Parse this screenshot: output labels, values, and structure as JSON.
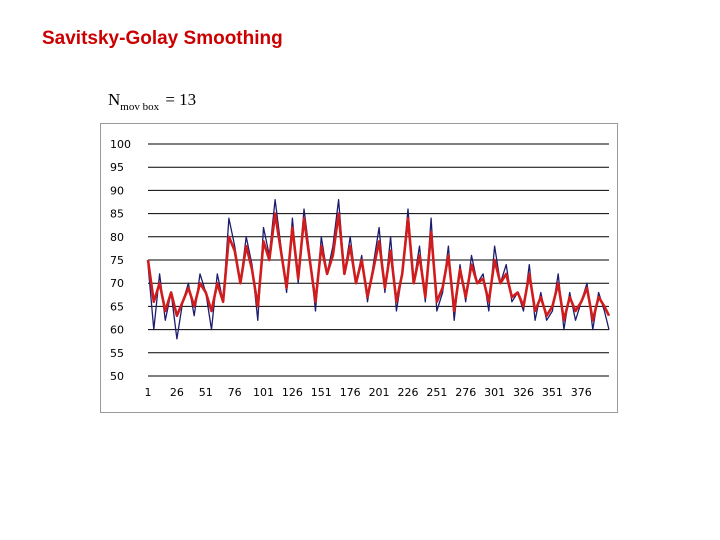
{
  "slide": {
    "title": "Savitsky-Golay Smoothing",
    "param_main": "N",
    "param_sub": "mov box",
    "param_value": "= 13"
  },
  "chart_data": {
    "type": "line",
    "title": "",
    "xlabel": "",
    "ylabel": "",
    "ylim": [
      50,
      100
    ],
    "xlim": [
      1,
      400
    ],
    "grid": true,
    "legend": "none",
    "y_ticks": [
      100,
      95,
      90,
      85,
      80,
      75,
      70,
      65,
      60,
      55,
      50
    ],
    "x_ticks": [
      1,
      26,
      51,
      76,
      101,
      126,
      151,
      176,
      201,
      226,
      251,
      276,
      301,
      326,
      351,
      376
    ],
    "series": [
      {
        "color": "#1c1c6e",
        "x": [
          1,
          6,
          11,
          16,
          21,
          26,
          31,
          36,
          41,
          46,
          51,
          56,
          61,
          66,
          71,
          76,
          81,
          86,
          91,
          96,
          101,
          106,
          111,
          116,
          121,
          126,
          131,
          136,
          141,
          146,
          151,
          156,
          161,
          166,
          171,
          176,
          181,
          186,
          191,
          196,
          201,
          206,
          211,
          216,
          221,
          226,
          231,
          236,
          241,
          246,
          251,
          256,
          261,
          266,
          271,
          276,
          281,
          286,
          291,
          296,
          301,
          306,
          311,
          316,
          321,
          326,
          331,
          336,
          341,
          346,
          351,
          356,
          361,
          366,
          371,
          376,
          381,
          386,
          391,
          396,
          400
        ],
        "values": [
          74,
          60,
          72,
          62,
          68,
          58,
          66,
          70,
          63,
          72,
          68,
          60,
          72,
          66,
          84,
          78,
          70,
          80,
          74,
          62,
          82,
          76,
          88,
          78,
          68,
          84,
          70,
          86,
          76,
          64,
          80,
          72,
          78,
          88,
          72,
          80,
          70,
          76,
          66,
          74,
          82,
          68,
          80,
          64,
          72,
          86,
          70,
          78,
          66,
          84,
          64,
          68,
          78,
          62,
          74,
          66,
          76,
          70,
          72,
          64,
          78,
          70,
          74,
          66,
          68,
          64,
          74,
          62,
          68,
          62,
          64,
          72,
          60,
          68,
          62,
          66,
          70,
          60,
          68,
          64,
          60
        ]
      },
      {
        "color": "#d01c1c",
        "x": [
          1,
          6,
          11,
          16,
          21,
          26,
          31,
          36,
          41,
          46,
          51,
          56,
          61,
          66,
          71,
          76,
          81,
          86,
          91,
          96,
          101,
          106,
          111,
          116,
          121,
          126,
          131,
          136,
          141,
          146,
          151,
          156,
          161,
          166,
          171,
          176,
          181,
          186,
          191,
          196,
          201,
          206,
          211,
          216,
          221,
          226,
          231,
          236,
          241,
          246,
          251,
          256,
          261,
          266,
          271,
          276,
          281,
          286,
          291,
          296,
          301,
          306,
          311,
          316,
          321,
          326,
          331,
          336,
          341,
          346,
          351,
          356,
          361,
          366,
          371,
          376,
          381,
          386,
          391,
          396,
          400
        ],
        "values": [
          75,
          66,
          70,
          64,
          68,
          63,
          66,
          69,
          65,
          70,
          68,
          64,
          70,
          66,
          80,
          77,
          70,
          78,
          73,
          65,
          79,
          75,
          85,
          77,
          69,
          82,
          71,
          84,
          75,
          66,
          78,
          72,
          76,
          85,
          72,
          78,
          70,
          75,
          67,
          73,
          79,
          69,
          77,
          66,
          72,
          84,
          70,
          76,
          67,
          81,
          66,
          69,
          76,
          64,
          73,
          67,
          74,
          70,
          71,
          66,
          75,
          70,
          72,
          67,
          68,
          65,
          72,
          64,
          67,
          63,
          65,
          70,
          62,
          67,
          64,
          66,
          69,
          62,
          67,
          65,
          63
        ]
      }
    ]
  }
}
